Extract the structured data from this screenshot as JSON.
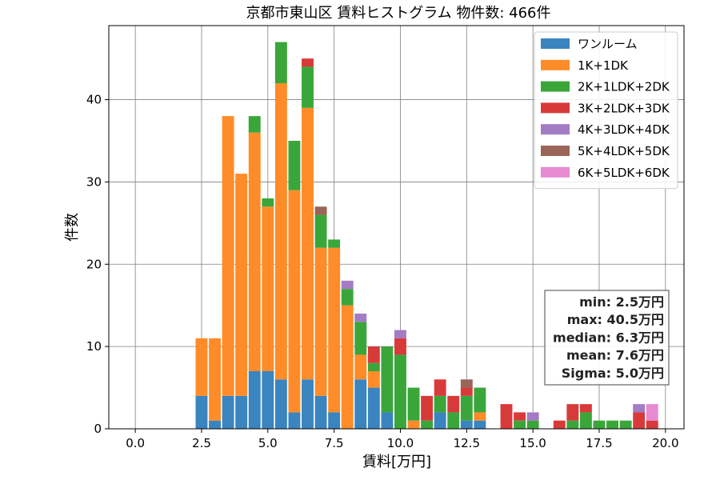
{
  "chart_data": {
    "type": "bar",
    "stacked": true,
    "title": "京都市東山区 賃料ヒストグラム  物件数: 466件",
    "xlabel": "賃料[万円]",
    "ylabel": "件数",
    "xlim": [
      -1.0,
      20.7
    ],
    "ylim": [
      0,
      49
    ],
    "xticks": [
      0.0,
      2.5,
      5.0,
      7.5,
      10.0,
      12.5,
      15.0,
      17.5,
      20.0
    ],
    "xtick_labels": [
      "0.0",
      "2.5",
      "5.0",
      "7.5",
      "10.0",
      "12.5",
      "15.0",
      "17.5",
      "20.0"
    ],
    "yticks": [
      0,
      10,
      20,
      30,
      40
    ],
    "ytick_labels": [
      "0",
      "10",
      "20",
      "30",
      "40"
    ],
    "grid": true,
    "legend_position": "top-right",
    "bin_width": 0.5,
    "x": [
      2.5,
      3.0,
      3.5,
      4.0,
      4.5,
      5.0,
      5.5,
      6.0,
      6.5,
      7.0,
      7.5,
      8.0,
      8.5,
      9.0,
      9.5,
      10.0,
      10.5,
      11.0,
      11.5,
      12.0,
      12.5,
      13.0,
      13.5,
      14.0,
      14.5,
      15.0,
      15.5,
      16.0,
      16.5,
      17.0,
      17.5,
      18.0,
      18.5,
      19.0,
      19.5
    ],
    "series": [
      {
        "name": "ワンルーム",
        "color": "#3a84bf",
        "values": [
          4,
          1,
          4,
          4,
          7,
          7,
          6,
          2,
          6,
          4,
          2,
          0,
          6,
          5,
          2,
          0,
          0,
          0,
          2,
          0,
          1,
          1,
          0,
          0,
          0,
          0,
          0,
          0,
          0,
          0,
          0,
          0,
          0,
          0,
          0
        ]
      },
      {
        "name": "1K+1DK",
        "color": "#ff8c28",
        "values": [
          7,
          10,
          34,
          27,
          29,
          20,
          36,
          27,
          33,
          18,
          20,
          15,
          3,
          2,
          0,
          0,
          1,
          0,
          0,
          0,
          0,
          1,
          0,
          0,
          0,
          0,
          0,
          0,
          0,
          0,
          0,
          0,
          0,
          0,
          0
        ]
      },
      {
        "name": "2K+1LDK+2DK",
        "color": "#3aa63a",
        "values": [
          0,
          0,
          0,
          0,
          2,
          1,
          5,
          6,
          5,
          4,
          1,
          2,
          4,
          1,
          8,
          9,
          4,
          1,
          2,
          2,
          3,
          3,
          0,
          0,
          1,
          1,
          0,
          0,
          1,
          2,
          1,
          1,
          1,
          0,
          0
        ]
      },
      {
        "name": "3K+2LDK+3DK",
        "color": "#d83a3a",
        "values": [
          0,
          0,
          0,
          0,
          0,
          0,
          0,
          0,
          1,
          0,
          0,
          0,
          0,
          2,
          0,
          2,
          0,
          3,
          2,
          2,
          1,
          0,
          0,
          3,
          1,
          0,
          0,
          1,
          2,
          1,
          0,
          0,
          0,
          2,
          1
        ]
      },
      {
        "name": "4K+3LDK+4DK",
        "color": "#a27cc5",
        "values": [
          0,
          0,
          0,
          0,
          0,
          0,
          0,
          0,
          0,
          0,
          0,
          1,
          1,
          0,
          0,
          1,
          0,
          0,
          0,
          0,
          0,
          0,
          0,
          0,
          0,
          1,
          0,
          0,
          0,
          0,
          0,
          0,
          0,
          1,
          0
        ]
      },
      {
        "name": "5K+4LDK+5DK",
        "color": "#9a6458",
        "values": [
          0,
          0,
          0,
          0,
          0,
          0,
          0,
          0,
          0,
          1,
          0,
          0,
          0,
          0,
          0,
          0,
          0,
          0,
          0,
          0,
          1,
          0,
          0,
          0,
          0,
          0,
          0,
          0,
          0,
          0,
          0,
          0,
          0,
          0,
          0
        ]
      },
      {
        "name": "6K+5LDK+6DK",
        "color": "#e88ad2",
        "values": [
          0,
          0,
          0,
          0,
          0,
          0,
          0,
          0,
          0,
          0,
          0,
          0,
          0,
          0,
          0,
          0,
          0,
          0,
          0,
          0,
          0,
          0,
          0,
          0,
          0,
          0,
          0,
          0,
          0,
          0,
          0,
          0,
          0,
          0,
          2
        ]
      }
    ],
    "stats_box": [
      "min: 2.5万円",
      "max: 40.5万円",
      "median: 6.3万円",
      "mean: 7.6万円",
      "Sigma: 5.0万円"
    ]
  }
}
